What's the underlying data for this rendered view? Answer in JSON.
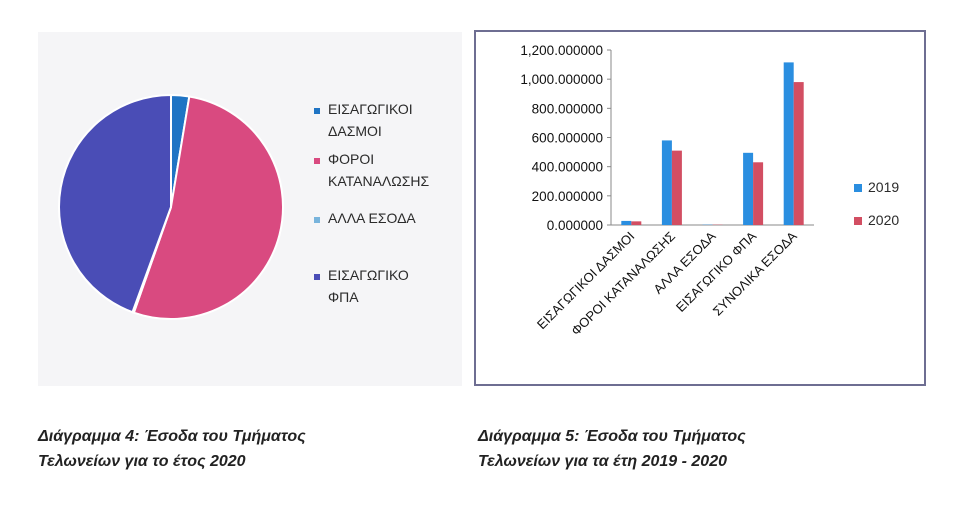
{
  "chart_data": [
    {
      "type": "pie",
      "categories": [
        "ΕΙΣΑΓΩΓΙΚΟΙ ΔΑΣΜΟΙ",
        "ΦΟΡΟΙ ΚΑΤΑΝΑΛΩΣΗΣ",
        "ΑΛΛΑ ΕΣΟΔΑ",
        "ΕΙΣΑΓΩΓΙΚΟ ΦΠΑ"
      ],
      "values": [
        25,
        505,
        2,
        425
      ],
      "colors": [
        "#1f74c4",
        "#d94a80",
        "#78b4dc",
        "#4a4db6"
      ],
      "legend": [
        {
          "lines": [
            "ΕΙΣΑΓΩΓΙΚΟΙ",
            "ΔΑΣΜΟΙ"
          ]
        },
        {
          "lines": [
            "ΦΟΡΟΙ",
            "ΚΑΤΑΝΑΛΩΣΗΣ"
          ]
        },
        {
          "lines": [
            "ΑΛΛΑ ΕΣΟΔΑ"
          ]
        },
        {
          "lines": [
            "ΕΙΣΑΓΩΓΙΚΟ",
            "ΦΠΑ"
          ]
        }
      ],
      "legend_position": "right"
    },
    {
      "type": "bar",
      "categories": [
        "ΕΙΣΑΓΩΓΙΚΟΙ ΔΑΣΜΟΙ",
        "ΦΟΡΟΙ ΚΑΤΑΝΑΛΩΣΗΣ",
        "ΑΛΛΑ ΕΣΟΔΑ",
        "ΕΙΣΑΓΩΓΙΚΟ ΦΠΑ",
        "ΣΥΝΟΛΙΚΑ ΕΣΟΔΑ"
      ],
      "series": [
        {
          "name": "2019",
          "color": "#2a8ee0",
          "values": [
            28,
            580,
            2,
            495,
            1115
          ]
        },
        {
          "name": "2020",
          "color": "#d24e62",
          "values": [
            25,
            510,
            2,
            430,
            980
          ]
        }
      ],
      "yticks": [
        "0.000000",
        "200.000000",
        "400.000000",
        "600.000000",
        "800.000000",
        "1,000.000000",
        "1,200.000000"
      ],
      "ylim": [
        0,
        1200
      ],
      "legend_position": "right"
    }
  ],
  "captions": {
    "left": [
      "Διάγραμμα 4: Έσοδα του Τμήματος",
      "Τελωνείων για το έτος 2020"
    ],
    "right": [
      "Διάγραμμα 5: Έσοδα του Τμήματος",
      "Τελωνείων για τα έτη 2019 - 2020"
    ]
  }
}
